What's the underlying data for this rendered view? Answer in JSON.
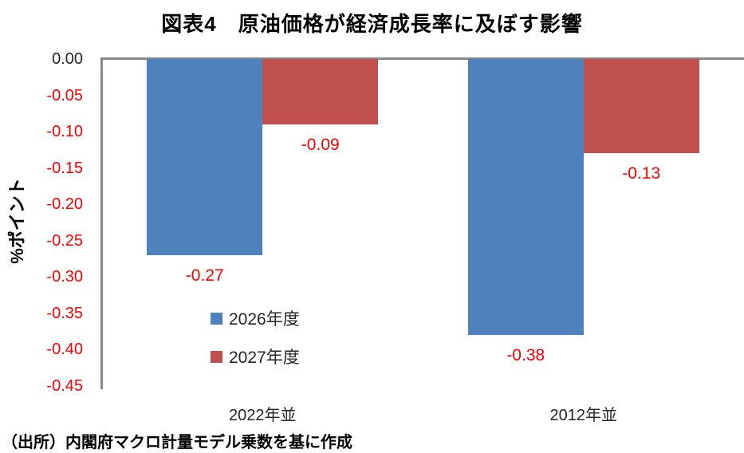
{
  "title": "図表4　原油価格が経済成長率に及ぼす影響",
  "source_note": "（出所）内閣府マクロ計量モデル乗数を基に作成",
  "colors": {
    "series_2026": "#4F81BD",
    "series_2027": "#C0504D",
    "negative_tick_text": "#FF0000",
    "data_label_text": "#FF0000",
    "axis_line": "#898989"
  },
  "chart_data": {
    "type": "bar",
    "title": "図表4　原油価格が経済成長率に及ぼす影響",
    "xlabel": "",
    "ylabel": "%ポイント",
    "categories": [
      "2022年並",
      "2012年並"
    ],
    "series": [
      {
        "name": "2026年度",
        "color": "#4F81BD",
        "values": [
          -0.27,
          -0.38
        ],
        "data_labels": [
          "-0.27",
          "-0.38"
        ]
      },
      {
        "name": "2027年度",
        "color": "#C0504D",
        "values": [
          -0.09,
          -0.13
        ],
        "data_labels": [
          "-0.09",
          "-0.13"
        ]
      }
    ],
    "ylim": [
      -0.45,
      0.0
    ],
    "yticks": [
      0.0,
      -0.05,
      -0.1,
      -0.15,
      -0.2,
      -0.25,
      -0.3,
      -0.35,
      -0.4,
      -0.45
    ],
    "ytick_labels": [
      "0.00",
      "-0.05",
      "-0.10",
      "-0.15",
      "-0.20",
      "-0.25",
      "-0.30",
      "-0.35",
      "-0.40",
      "-0.45"
    ],
    "grid": false,
    "legend_position": "inside-bottom-left"
  }
}
